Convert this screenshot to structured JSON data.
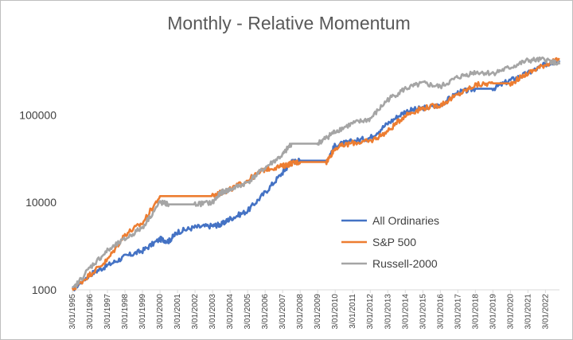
{
  "chart_data": {
    "type": "line",
    "title": "Monthly - Relative Momentum",
    "xlabel": "",
    "ylabel": "",
    "y_scale": "log",
    "ylim": [
      1000,
      600000
    ],
    "y_ticks": [
      "1000",
      "10000",
      "100000"
    ],
    "x_ticks": [
      "3/01/1995",
      "3/01/1996",
      "3/01/1997",
      "3/01/1998",
      "3/01/1999",
      "3/01/2000",
      "3/01/2001",
      "3/01/2002",
      "3/01/2003",
      "3/01/2004",
      "3/01/2005",
      "3/01/2006",
      "3/01/2007",
      "3/01/2008",
      "3/01/2009",
      "3/01/2010",
      "3/01/2011",
      "3/01/2012",
      "3/01/2013",
      "3/01/2014",
      "3/01/2015",
      "3/01/2016",
      "3/01/2017",
      "3/01/2018",
      "3/01/2019",
      "3/01/2020",
      "3/01/2021",
      "3/01/2022"
    ],
    "gridlines": false,
    "legend_position": "lower-right",
    "x": [
      1995.0,
      1996.0,
      1997.0,
      1998.0,
      1999.0,
      2000.0,
      2000.5,
      2001.0,
      2002.0,
      2003.0,
      2003.5,
      2004.0,
      2005.0,
      2006.0,
      2007.0,
      2007.5,
      2008.0,
      2009.0,
      2009.5,
      2010.0,
      2011.0,
      2012.0,
      2013.0,
      2014.0,
      2015.0,
      2016.0,
      2017.0,
      2018.0,
      2019.0,
      2020.0,
      2021.0,
      2022.0,
      2022.8
    ],
    "series": [
      {
        "name": "All Ordinaries",
        "color": "#4472C4",
        "values": [
          1000,
          1500,
          1900,
          2400,
          2800,
          3800,
          3600,
          4600,
          5200,
          5400,
          5600,
          6500,
          8000,
          13000,
          22000,
          29000,
          30000,
          30000,
          30000,
          45000,
          50000,
          55000,
          80000,
          110000,
          120000,
          130000,
          180000,
          200000,
          200000,
          250000,
          300000,
          380000,
          420000
        ]
      },
      {
        "name": "S&P 500",
        "color": "#ED7D31",
        "values": [
          1000,
          1500,
          2200,
          4300,
          5800,
          11800,
          11800,
          11800,
          11800,
          11800,
          13000,
          14000,
          18000,
          24000,
          26000,
          28000,
          29000,
          29000,
          29000,
          42000,
          48000,
          50000,
          65000,
          100000,
          120000,
          130000,
          170000,
          220000,
          230000,
          230000,
          300000,
          380000,
          430000
        ]
      },
      {
        "name": "Russell-2000",
        "color": "#A5A5A5",
        "values": [
          1000,
          1800,
          2800,
          3800,
          5200,
          10000,
          9500,
          9500,
          9500,
          10000,
          13000,
          14000,
          17000,
          25000,
          35000,
          47000,
          47000,
          47000,
          55000,
          65000,
          80000,
          90000,
          150000,
          200000,
          230000,
          210000,
          270000,
          310000,
          300000,
          350000,
          420000,
          430000,
          380000
        ]
      }
    ]
  }
}
